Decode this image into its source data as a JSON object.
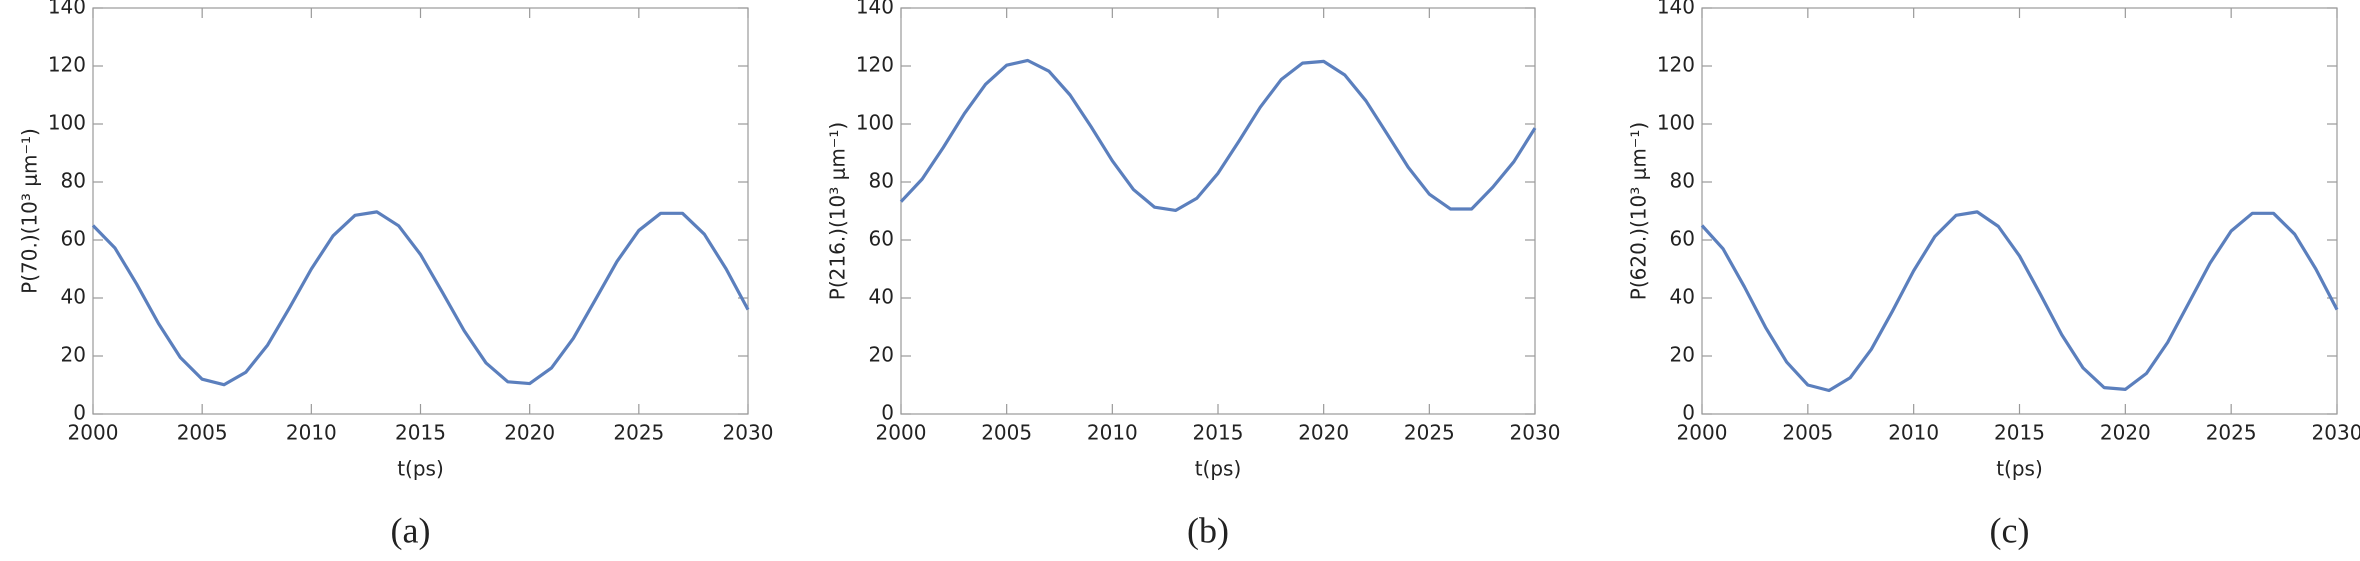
{
  "chart_data": [
    {
      "type": "line",
      "caption": "(a)",
      "xlabel": "t(ps)",
      "ylabel": "P(70.)(10³ μm⁻¹)",
      "xlim": [
        2000,
        2030
      ],
      "xticks": [
        2000,
        2005,
        2010,
        2015,
        2020,
        2025,
        2030
      ],
      "ylim": [
        0,
        140
      ],
      "yticks": [
        0,
        20,
        40,
        60,
        80,
        100,
        120,
        140
      ],
      "x": [
        2000,
        2001,
        2002,
        2003,
        2004,
        2005,
        2006,
        2007,
        2008,
        2009,
        2010,
        2011,
        2012,
        2013,
        2014,
        2015,
        2016,
        2017,
        2018,
        2019,
        2020,
        2021,
        2022,
        2023,
        2024,
        2025,
        2026,
        2027,
        2028,
        2029,
        2030
      ],
      "series": [
        {
          "color": "#5b7fbd",
          "values": [
            65,
            57.3,
            44.8,
            31.2,
            19.5,
            12,
            10.1,
            14.4,
            23.8,
            36.6,
            50,
            61.5,
            68.5,
            69.7,
            64.9,
            55,
            42,
            28.7,
            17.6,
            11.1,
            10.5,
            15.9,
            26.1,
            39.3,
            52.6,
            63.3,
            69.2,
            69.2,
            62,
            50,
            36
          ]
        }
      ]
    },
    {
      "type": "line",
      "caption": "(b)",
      "xlabel": "t(ps)",
      "ylabel": "P(216.)(10³ μm⁻¹)",
      "xlim": [
        2000,
        2030
      ],
      "xticks": [
        2000,
        2005,
        2010,
        2015,
        2020,
        2025,
        2030
      ],
      "ylim": [
        0,
        140
      ],
      "yticks": [
        0,
        20,
        40,
        60,
        80,
        100,
        120,
        140
      ],
      "x": [
        2000,
        2001,
        2002,
        2003,
        2004,
        2005,
        2006,
        2007,
        2008,
        2009,
        2010,
        2011,
        2012,
        2013,
        2014,
        2015,
        2016,
        2017,
        2018,
        2019,
        2020,
        2021,
        2022,
        2023,
        2024,
        2025,
        2026,
        2027,
        2028,
        2029,
        2030
      ],
      "series": [
        {
          "color": "#5b7fbd",
          "values": [
            73.2,
            81,
            91.9,
            103.6,
            113.7,
            120.3,
            121.9,
            118.2,
            110,
            99,
            87.3,
            77.4,
            71.3,
            70.2,
            74.4,
            83,
            94.2,
            105.8,
            115.4,
            121,
            121.6,
            116.9,
            108,
            96.6,
            85.1,
            75.8,
            70.7,
            70.7,
            78.2,
            87,
            98.6
          ]
        }
      ]
    },
    {
      "type": "line",
      "caption": "(c)",
      "xlabel": "t(ps)",
      "ylabel": "P(620.)(10³ μm⁻¹)",
      "xlim": [
        2000,
        2030
      ],
      "xticks": [
        2000,
        2005,
        2010,
        2015,
        2020,
        2025,
        2030
      ],
      "ylim": [
        0,
        140
      ],
      "yticks": [
        0,
        20,
        40,
        60,
        80,
        100,
        120,
        140
      ],
      "x": [
        2000,
        2001,
        2002,
        2003,
        2004,
        2005,
        2006,
        2007,
        2008,
        2009,
        2010,
        2011,
        2012,
        2013,
        2014,
        2015,
        2016,
        2017,
        2018,
        2019,
        2020,
        2021,
        2022,
        2023,
        2024,
        2025,
        2026,
        2027,
        2028,
        2029,
        2030
      ],
      "series": [
        {
          "color": "#5b7fbd",
          "values": [
            65,
            56.9,
            43.9,
            29.9,
            17.9,
            10,
            8.1,
            12.5,
            22.3,
            35.5,
            49.4,
            61.2,
            68.5,
            69.7,
            64.7,
            54.5,
            41.1,
            27.3,
            15.9,
            9.1,
            8.5,
            14,
            24.7,
            38.3,
            52,
            63.1,
            69.2,
            69.2,
            62,
            50,
            36
          ]
        }
      ]
    }
  ]
}
